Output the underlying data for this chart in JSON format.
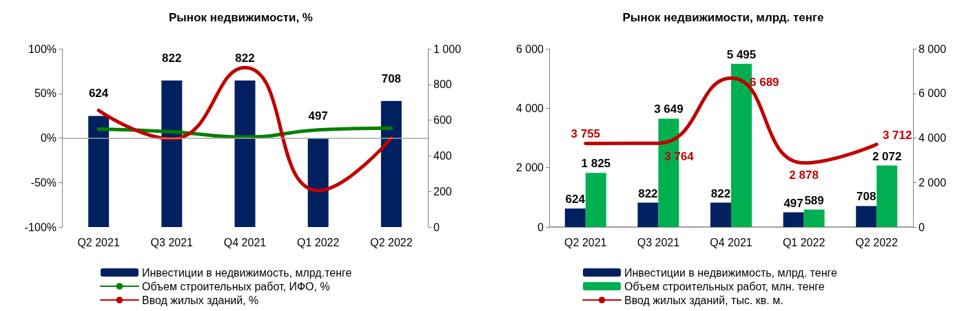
{
  "chart_data": [
    {
      "type": "bar",
      "title": "Рынок недвижимости, %",
      "categories": [
        "Q2 2021",
        "Q3 2021",
        "Q4 2021",
        "Q1 2022",
        "Q2 2022"
      ],
      "series": [
        {
          "name": "Инвестиции в недвижимость, млрд.тенге",
          "axis": "y2",
          "color": "#002060",
          "values": [
            624,
            822,
            822,
            497,
            708
          ],
          "value_labels": [
            "624",
            "822",
            "822",
            "497",
            "708"
          ]
        },
        {
          "name": "Объем строительных работ, ИФО, %",
          "type": "line",
          "color": "#008000",
          "values": [
            10,
            7,
            1,
            9,
            11
          ]
        },
        {
          "name": "Ввод жилых зданий, %",
          "type": "line",
          "color": "#c00000",
          "values": [
            31,
            -1,
            79,
            -59,
            0
          ]
        }
      ],
      "ylim": [
        -100,
        100
      ],
      "yticks": [
        {
          "value": -100,
          "label": "-100%"
        },
        {
          "value": -50,
          "label": "-50%"
        },
        {
          "value": 0,
          "label": "0%"
        },
        {
          "value": 50,
          "label": "50%"
        },
        {
          "value": 100,
          "label": "100%"
        }
      ],
      "y2lim": [
        0,
        1000
      ],
      "y2ticks": [
        0,
        200,
        400,
        600,
        800,
        {
          "value": 1000,
          "label": "1 000"
        }
      ],
      "ref_lines": [
        {
          "axis": "y",
          "value": 0,
          "color": "#a6a6a6"
        }
      ],
      "legend": "bottom",
      "marker": "none",
      "grid": false
    },
    {
      "type": "bar",
      "title": "Рынок недвижимости, млрд. тенге",
      "categories": [
        "Q2 2021",
        "Q3 2021",
        "Q4 2021",
        "Q1 2022",
        "Q2 2022"
      ],
      "series": [
        {
          "name": "Инвестиции в недвижимость, млрд. тенге",
          "color": "#002060",
          "values": [
            624,
            822,
            822,
            497,
            708
          ],
          "value_labels": [
            "624",
            "822",
            "822",
            "497",
            "708"
          ]
        },
        {
          "name": "Объем строительных работ, млн. тенге",
          "color": "#00b050",
          "values": [
            1825,
            3649,
            5495,
            589,
            2072
          ],
          "value_labels": [
            "1 825",
            "3 649",
            "5 495",
            "589",
            "2 072"
          ]
        },
        {
          "name": "Ввод жилых зданий, тыс. кв. м.",
          "type": "line",
          "axis": "y2",
          "color": "#c00000",
          "values": [
            3755,
            3764,
            6689,
            2878,
            3712
          ],
          "value_labels": [
            "3 755",
            "3 764",
            "6 689",
            "2 878",
            "3 712"
          ]
        }
      ],
      "ylim": [
        0,
        6000
      ],
      "yticks": [
        0,
        {
          "value": 2000,
          "label": "2 000"
        },
        {
          "value": 4000,
          "label": "4 000"
        },
        {
          "value": 6000,
          "label": "6 000"
        }
      ],
      "y2lim": [
        0,
        8000
      ],
      "y2ticks": [
        0,
        {
          "value": 2000,
          "label": "2 000"
        },
        {
          "value": 4000,
          "label": "4 000"
        },
        {
          "value": 6000,
          "label": "6 000"
        },
        {
          "value": 8000,
          "label": "8 000"
        }
      ],
      "legend": "bottom",
      "marker": "none",
      "grid": false
    }
  ]
}
